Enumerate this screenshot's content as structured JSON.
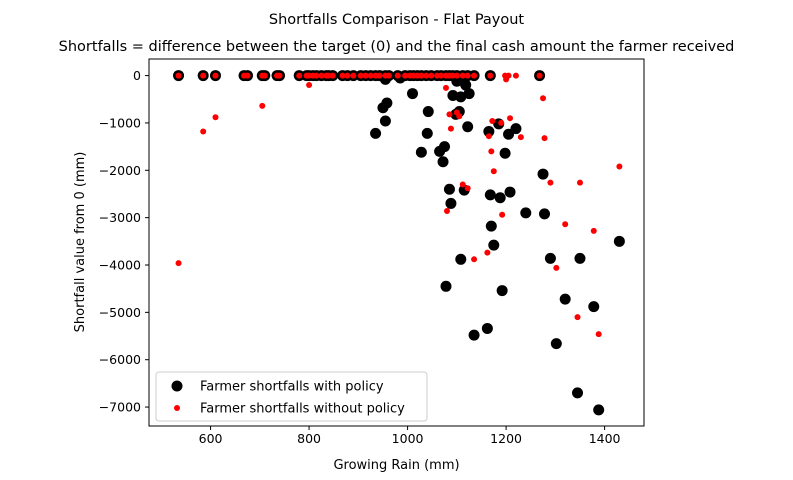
{
  "chart_data": {
    "type": "scatter",
    "suptitle": "Shortfalls Comparison - Flat Payout",
    "title": "Shortfalls = difference between the target (0) and the final cash amount the farmer received",
    "xlabel": "Growing Rain (mm)",
    "ylabel": "Shortfall value from 0 (mm)",
    "xlim": [
      475,
      1480
    ],
    "ylim": [
      -7400,
      350
    ],
    "xticks": [
      600,
      800,
      1000,
      1200,
      1400
    ],
    "xtick_labels": [
      "600",
      "800",
      "1000",
      "1200",
      "1400"
    ],
    "yticks": [
      0,
      -1000,
      -2000,
      -3000,
      -4000,
      -5000,
      -6000,
      -7000
    ],
    "ytick_labels": [
      "0",
      "−1000",
      "−2000",
      "−3000",
      "−4000",
      "−5000",
      "−6000",
      "−7000"
    ],
    "grid": false,
    "legend_position": "lower-left",
    "series": [
      {
        "name": "Farmer shortfalls with policy",
        "color": "#000000",
        "marker": "circle-large",
        "points": [
          [
            535,
            0
          ],
          [
            585,
            0
          ],
          [
            610,
            0
          ],
          [
            668,
            0
          ],
          [
            675,
            0
          ],
          [
            705,
            0
          ],
          [
            710,
            0
          ],
          [
            735,
            0
          ],
          [
            740,
            0
          ],
          [
            780,
            0
          ],
          [
            795,
            0
          ],
          [
            800,
            0
          ],
          [
            808,
            0
          ],
          [
            815,
            0
          ],
          [
            825,
            0
          ],
          [
            835,
            0
          ],
          [
            840,
            0
          ],
          [
            848,
            0
          ],
          [
            868,
            0
          ],
          [
            878,
            0
          ],
          [
            890,
            0
          ],
          [
            905,
            0
          ],
          [
            915,
            0
          ],
          [
            925,
            0
          ],
          [
            935,
            0
          ],
          [
            943,
            0
          ],
          [
            955,
            0
          ],
          [
            962,
            0
          ],
          [
            980,
            0
          ],
          [
            995,
            0
          ],
          [
            1005,
            0
          ],
          [
            1012,
            0
          ],
          [
            1020,
            0
          ],
          [
            1028,
            0
          ],
          [
            1038,
            0
          ],
          [
            1048,
            0
          ],
          [
            1060,
            0
          ],
          [
            1068,
            0
          ],
          [
            1078,
            0
          ],
          [
            1085,
            0
          ],
          [
            1092,
            0
          ],
          [
            1100,
            0
          ],
          [
            1112,
            0
          ],
          [
            1122,
            0
          ],
          [
            1135,
            0
          ],
          [
            1168,
            0
          ],
          [
            1268,
            0
          ],
          [
            935,
            -1220
          ],
          [
            950,
            -680
          ],
          [
            955,
            -80
          ],
          [
            955,
            -960
          ],
          [
            958,
            -580
          ],
          [
            985,
            -50
          ],
          [
            1010,
            -380
          ],
          [
            1028,
            -1620
          ],
          [
            1040,
            -1220
          ],
          [
            1042,
            -760
          ],
          [
            1065,
            -1600
          ],
          [
            1072,
            -1820
          ],
          [
            1075,
            -1500
          ],
          [
            1078,
            -4450
          ],
          [
            1085,
            -2400
          ],
          [
            1088,
            -2700
          ],
          [
            1092,
            -420
          ],
          [
            1098,
            -820
          ],
          [
            1100,
            -120
          ],
          [
            1105,
            -760
          ],
          [
            1108,
            -450
          ],
          [
            1108,
            -3880
          ],
          [
            1115,
            -2420
          ],
          [
            1118,
            -200
          ],
          [
            1122,
            -1080
          ],
          [
            1125,
            -380
          ],
          [
            1135,
            -5480
          ],
          [
            1162,
            -5340
          ],
          [
            1165,
            -1180
          ],
          [
            1168,
            -2520
          ],
          [
            1170,
            -3180
          ],
          [
            1175,
            -3580
          ],
          [
            1185,
            -1020
          ],
          [
            1188,
            -2580
          ],
          [
            1192,
            -4540
          ],
          [
            1198,
            -1640
          ],
          [
            1205,
            -1240
          ],
          [
            1208,
            -2460
          ],
          [
            1220,
            -1120
          ],
          [
            1240,
            -2900
          ],
          [
            1275,
            -2080
          ],
          [
            1278,
            -2920
          ],
          [
            1290,
            -3860
          ],
          [
            1302,
            -5660
          ],
          [
            1320,
            -4720
          ],
          [
            1345,
            -6700
          ],
          [
            1350,
            -3860
          ],
          [
            1378,
            -4880
          ],
          [
            1388,
            -7060
          ],
          [
            1430,
            -3500
          ]
        ]
      },
      {
        "name": "Farmer shortfalls without policy",
        "color": "#ff0000",
        "marker": "circle-small",
        "points": [
          [
            535,
            0
          ],
          [
            585,
            0
          ],
          [
            610,
            0
          ],
          [
            668,
            0
          ],
          [
            675,
            0
          ],
          [
            705,
            0
          ],
          [
            710,
            0
          ],
          [
            735,
            0
          ],
          [
            740,
            0
          ],
          [
            780,
            0
          ],
          [
            795,
            0
          ],
          [
            800,
            0
          ],
          [
            808,
            0
          ],
          [
            815,
            0
          ],
          [
            825,
            0
          ],
          [
            835,
            0
          ],
          [
            840,
            0
          ],
          [
            848,
            0
          ],
          [
            868,
            0
          ],
          [
            878,
            0
          ],
          [
            890,
            0
          ],
          [
            905,
            0
          ],
          [
            915,
            0
          ],
          [
            925,
            0
          ],
          [
            935,
            0
          ],
          [
            943,
            0
          ],
          [
            955,
            0
          ],
          [
            962,
            0
          ],
          [
            980,
            0
          ],
          [
            995,
            0
          ],
          [
            1005,
            0
          ],
          [
            1012,
            0
          ],
          [
            1020,
            0
          ],
          [
            1028,
            0
          ],
          [
            1038,
            0
          ],
          [
            1048,
            0
          ],
          [
            1060,
            0
          ],
          [
            1068,
            0
          ],
          [
            1078,
            0
          ],
          [
            1085,
            0
          ],
          [
            1092,
            0
          ],
          [
            1100,
            0
          ],
          [
            1112,
            0
          ],
          [
            1122,
            0
          ],
          [
            1135,
            0
          ],
          [
            1168,
            0
          ],
          [
            1198,
            0
          ],
          [
            1205,
            0
          ],
          [
            1220,
            0
          ],
          [
            1268,
            0
          ],
          [
            535,
            -3960
          ],
          [
            585,
            -1180
          ],
          [
            610,
            -880
          ],
          [
            705,
            -640
          ],
          [
            800,
            -200
          ],
          [
            1078,
            -260
          ],
          [
            1080,
            -2860
          ],
          [
            1085,
            -820
          ],
          [
            1088,
            -1120
          ],
          [
            1100,
            -780
          ],
          [
            1105,
            -860
          ],
          [
            1112,
            -2300
          ],
          [
            1122,
            -2380
          ],
          [
            1135,
            -3880
          ],
          [
            1162,
            -3740
          ],
          [
            1165,
            -1280
          ],
          [
            1170,
            -1600
          ],
          [
            1172,
            -960
          ],
          [
            1175,
            -2020
          ],
          [
            1190,
            -1000
          ],
          [
            1192,
            -2940
          ],
          [
            1200,
            -80
          ],
          [
            1208,
            -900
          ],
          [
            1230,
            -1300
          ],
          [
            1275,
            -480
          ],
          [
            1278,
            -1320
          ],
          [
            1290,
            -2260
          ],
          [
            1302,
            -4060
          ],
          [
            1320,
            -3140
          ],
          [
            1345,
            -5100
          ],
          [
            1350,
            -2260
          ],
          [
            1378,
            -3280
          ],
          [
            1388,
            -5460
          ],
          [
            1430,
            -1920
          ]
        ]
      }
    ]
  }
}
